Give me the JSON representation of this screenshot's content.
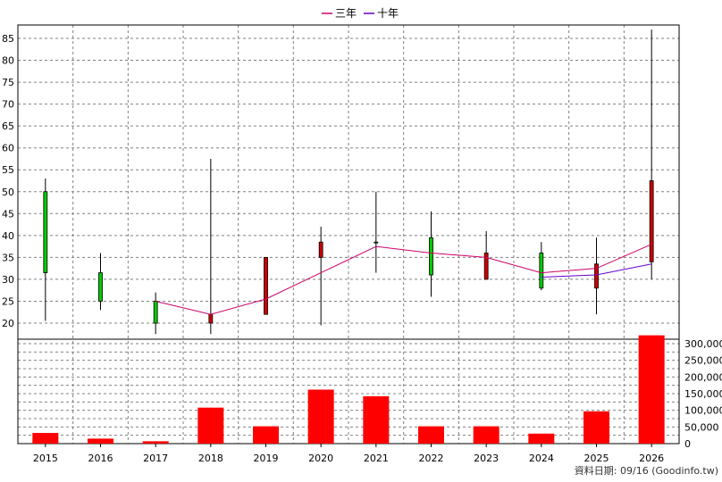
{
  "chart_data": {
    "type": "candlestick",
    "legend": [
      {
        "label": "三年",
        "color": "#cc0066"
      },
      {
        "label": "十年",
        "color": "#6600cc"
      }
    ],
    "years": [
      "2015",
      "2016",
      "2017",
      "2018",
      "2019",
      "2020",
      "2021",
      "2022",
      "2023",
      "2024",
      "2025",
      "2026"
    ],
    "candles": [
      {
        "open": 31.5,
        "close": 50.0,
        "high": 53.0,
        "low": 20.5
      },
      {
        "open": 25.0,
        "close": 31.5,
        "high": 36.0,
        "low": 23.0
      },
      {
        "open": 20.0,
        "close": 25.0,
        "high": 27.0,
        "low": 17.5
      },
      {
        "open": 22.0,
        "close": 20.0,
        "high": 57.5,
        "low": 17.5
      },
      {
        "open": 35.0,
        "close": 22.0,
        "high": 35.0,
        "low": 22.0
      },
      {
        "open": 38.5,
        "close": 35.0,
        "high": 42.0,
        "low": 19.5
      },
      {
        "open": 38.5,
        "close": 38.5,
        "high": 50.0,
        "low": 31.5
      },
      {
        "open": 31.0,
        "close": 39.5,
        "high": 45.5,
        "low": 26.0
      },
      {
        "open": 36.0,
        "close": 30.0,
        "high": 41.0,
        "low": 30.0
      },
      {
        "open": 28.0,
        "close": 36.0,
        "high": 38.5,
        "low": 27.5
      },
      {
        "open": 33.5,
        "close": 28.0,
        "high": 39.5,
        "low": 22.0
      },
      {
        "open": 52.5,
        "close": 34.0,
        "high": 87.0,
        "low": 30.0
      }
    ],
    "ma3": [
      null,
      null,
      25.0,
      22.0,
      25.5,
      31.5,
      37.5,
      36.0,
      35.0,
      31.5,
      32.5,
      38.0
    ],
    "ma10": [
      null,
      null,
      null,
      null,
      null,
      null,
      null,
      null,
      null,
      30.5,
      31.0,
      33.5
    ],
    "volume": [
      32000,
      15000,
      7000,
      108000,
      52000,
      162000,
      142000,
      52000,
      52000,
      30000,
      97000,
      325000
    ],
    "price_ticks": [
      20,
      25,
      30,
      35,
      40,
      45,
      50,
      55,
      60,
      65,
      70,
      75,
      80,
      85
    ],
    "volume_ticks": [
      "0",
      "50,000",
      "100,000",
      "150,000",
      "200,000",
      "250,000",
      "300,000"
    ],
    "volume_tick_values": [
      0,
      50000,
      100000,
      150000,
      200000,
      250000,
      300000
    ],
    "colors": {
      "up": "#00cc00",
      "down": "#cc0000",
      "volume": "#ff0000",
      "grid": "#808080"
    }
  },
  "footer": "資料日期: 09/16  (Goodinfo.tw)"
}
